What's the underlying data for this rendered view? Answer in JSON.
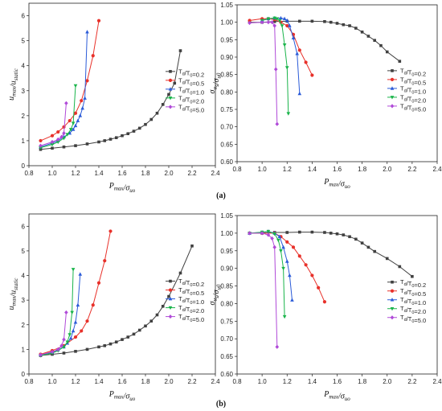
{
  "panel_labels": [
    "(a)",
    "(b)"
  ],
  "chart_data": [
    {
      "type": "line",
      "xlabel": "P_max/σ_uo",
      "ylabel": "u_max/u_static",
      "xlim": [
        0.8,
        2.4
      ],
      "ylim": [
        0,
        6.5
      ],
      "xticks": [
        "0.8",
        "1.0",
        "1.2",
        "1.4",
        "1.6",
        "1.8",
        "2.0",
        "2.2",
        "2.4"
      ],
      "yticks": [
        "0",
        "1",
        "2",
        "3",
        "4",
        "5",
        "6"
      ],
      "legend": "right",
      "series": [
        {
          "name": "T_d/T_0=0.2",
          "color": "#404040",
          "marker": "square",
          "x": [
            0.9,
            1.0,
            1.1,
            1.2,
            1.3,
            1.4,
            1.45,
            1.5,
            1.55,
            1.6,
            1.65,
            1.7,
            1.75,
            1.8,
            1.85,
            1.9,
            1.95,
            2.0,
            2.05,
            2.1
          ],
          "y": [
            0.65,
            0.7,
            0.75,
            0.8,
            0.87,
            0.95,
            1.0,
            1.06,
            1.12,
            1.2,
            1.28,
            1.38,
            1.5,
            1.65,
            1.85,
            2.1,
            2.45,
            2.85,
            3.3,
            4.6
          ]
        },
        {
          "name": "T_d/T_0=0.5",
          "color": "#e8312a",
          "marker": "circle",
          "x": [
            0.9,
            1.0,
            1.05,
            1.1,
            1.15,
            1.2,
            1.25,
            1.3,
            1.35,
            1.4
          ],
          "y": [
            1.0,
            1.2,
            1.35,
            1.55,
            1.8,
            2.1,
            2.6,
            3.4,
            4.4,
            5.8
          ]
        },
        {
          "name": "T_d/T_0=1.0",
          "color": "#2b5bd8",
          "marker": "triangle-up",
          "x": [
            0.9,
            1.0,
            1.05,
            1.1,
            1.15,
            1.18,
            1.2,
            1.22,
            1.24,
            1.26,
            1.28,
            1.3
          ],
          "y": [
            0.75,
            0.9,
            1.0,
            1.15,
            1.3,
            1.45,
            1.6,
            1.8,
            2.0,
            2.3,
            2.7,
            5.35
          ]
        },
        {
          "name": "T_d/T_0=2.0",
          "color": "#19b44a",
          "marker": "triangle-down",
          "x": [
            0.9,
            1.0,
            1.05,
            1.1,
            1.13,
            1.16,
            1.18,
            1.2
          ],
          "y": [
            0.72,
            0.85,
            0.95,
            1.1,
            1.25,
            1.45,
            1.7,
            3.2
          ]
        },
        {
          "name": "T_d/T_0=5.0",
          "color": "#b04ad8",
          "marker": "diamond",
          "x": [
            0.9,
            1.0,
            1.05,
            1.08,
            1.1,
            1.12
          ],
          "y": [
            0.8,
            0.95,
            1.05,
            1.15,
            1.3,
            2.5
          ]
        }
      ]
    },
    {
      "type": "line",
      "xlabel": "P_max/σ_uo",
      "ylabel": "σ_u_s/σ_u0",
      "xlim": [
        0.8,
        2.4
      ],
      "ylim": [
        0.6,
        1.05
      ],
      "xticks": [
        "0.8",
        "1.0",
        "1.2",
        "1.4",
        "1.6",
        "1.8",
        "2.0",
        "2.2",
        "2.4"
      ],
      "yticks": [
        "0.60",
        "0.65",
        "0.70",
        "0.75",
        "0.80",
        "0.85",
        "0.90",
        "0.95",
        "1.00",
        "1.05"
      ],
      "legend": "right",
      "series": [
        {
          "name": "T_d/T_0=0.2",
          "color": "#404040",
          "marker": "square",
          "x": [
            0.9,
            1.0,
            1.1,
            1.2,
            1.3,
            1.4,
            1.5,
            1.55,
            1.6,
            1.65,
            1.7,
            1.75,
            1.8,
            1.85,
            1.9,
            1.95,
            2.0,
            2.1
          ],
          "y": [
            1.0,
            1.0,
            1.002,
            1.003,
            1.003,
            1.003,
            1.002,
            1.0,
            0.997,
            0.993,
            0.99,
            0.983,
            0.972,
            0.96,
            0.948,
            0.933,
            0.915,
            0.888
          ]
        },
        {
          "name": "T_d/T_0=0.5",
          "color": "#e8312a",
          "marker": "circle",
          "x": [
            0.9,
            1.0,
            1.05,
            1.1,
            1.15,
            1.2,
            1.25,
            1.3,
            1.35,
            1.4
          ],
          "y": [
            1.005,
            1.01,
            1.01,
            1.008,
            1.0,
            0.99,
            0.965,
            0.92,
            0.885,
            0.848
          ]
        },
        {
          "name": "T_d/T_0=1.0",
          "color": "#2b5bd8",
          "marker": "triangle-up",
          "x": [
            1.0,
            1.05,
            1.1,
            1.15,
            1.18,
            1.2,
            1.22,
            1.25,
            1.28,
            1.3
          ],
          "y": [
            1.005,
            1.01,
            1.012,
            1.012,
            1.01,
            1.005,
            0.99,
            0.955,
            0.91,
            0.795
          ]
        },
        {
          "name": "T_d/T_0=2.0",
          "color": "#19b44a",
          "marker": "triangle-down",
          "x": [
            1.0,
            1.05,
            1.1,
            1.12,
            1.14,
            1.16,
            1.18,
            1.2,
            1.21
          ],
          "y": [
            1.005,
            1.01,
            1.012,
            1.01,
            1.005,
            0.99,
            0.935,
            0.87,
            0.738
          ]
        },
        {
          "name": "T_d/T_0=5.0",
          "color": "#b04ad8",
          "marker": "diamond",
          "x": [
            0.9,
            1.0,
            1.05,
            1.08,
            1.1,
            1.11,
            1.12
          ],
          "y": [
            0.998,
            1.0,
            1.0,
            1.0,
            0.99,
            0.865,
            0.708
          ]
        }
      ]
    },
    {
      "type": "line",
      "xlabel": "P_max/σ_uo",
      "ylabel": "u_max/u_static",
      "xlim": [
        0.8,
        2.4
      ],
      "ylim": [
        0,
        6.5
      ],
      "xticks": [
        "0.8",
        "1.0",
        "1.2",
        "1.4",
        "1.6",
        "1.8",
        "2.0",
        "2.2",
        "2.4"
      ],
      "yticks": [
        "0",
        "1",
        "2",
        "3",
        "4",
        "5",
        "6"
      ],
      "legend": "right",
      "series": [
        {
          "name": "T_d/T_0=0.2",
          "color": "#404040",
          "marker": "square",
          "x": [
            0.9,
            1.0,
            1.1,
            1.2,
            1.3,
            1.4,
            1.45,
            1.5,
            1.55,
            1.6,
            1.65,
            1.7,
            1.75,
            1.8,
            1.85,
            1.9,
            1.95,
            2.0,
            2.1,
            2.2
          ],
          "y": [
            0.75,
            0.8,
            0.85,
            0.92,
            1.0,
            1.1,
            1.15,
            1.22,
            1.3,
            1.4,
            1.5,
            1.62,
            1.78,
            1.95,
            2.15,
            2.4,
            2.75,
            3.15,
            4.1,
            5.2
          ]
        },
        {
          "name": "T_d/T_0=0.5",
          "color": "#e8312a",
          "marker": "circle",
          "x": [
            0.9,
            1.0,
            1.1,
            1.2,
            1.25,
            1.3,
            1.35,
            1.4,
            1.45,
            1.5
          ],
          "y": [
            0.8,
            0.95,
            1.15,
            1.5,
            1.75,
            2.15,
            2.8,
            3.7,
            4.6,
            5.8
          ]
        },
        {
          "name": "T_d/T_0=1.0",
          "color": "#2b5bd8",
          "marker": "triangle-up",
          "x": [
            0.9,
            1.0,
            1.05,
            1.1,
            1.13,
            1.16,
            1.18,
            1.2,
            1.22,
            1.24
          ],
          "y": [
            0.78,
            0.88,
            0.98,
            1.1,
            1.25,
            1.45,
            1.75,
            2.1,
            2.8,
            4.05
          ]
        },
        {
          "name": "T_d/T_0=2.0",
          "color": "#19b44a",
          "marker": "triangle-down",
          "x": [
            0.9,
            1.0,
            1.05,
            1.1,
            1.13,
            1.15,
            1.17,
            1.18
          ],
          "y": [
            0.75,
            0.85,
            0.95,
            1.1,
            1.3,
            1.6,
            2.5,
            4.25
          ]
        },
        {
          "name": "T_d/T_0=5.0",
          "color": "#b04ad8",
          "marker": "diamond",
          "x": [
            0.9,
            1.0,
            1.05,
            1.08,
            1.1,
            1.12
          ],
          "y": [
            0.78,
            0.9,
            1.0,
            1.15,
            1.4,
            2.5
          ]
        }
      ]
    },
    {
      "type": "line",
      "xlabel": "P_max/σ_uo",
      "ylabel": "σ_u_s/σ_u0",
      "xlim": [
        0.8,
        2.4
      ],
      "ylim": [
        0.6,
        1.05
      ],
      "xticks": [
        "0.8",
        "1.0",
        "1.2",
        "1.4",
        "1.6",
        "1.8",
        "2.0",
        "2.2",
        "2.4"
      ],
      "yticks": [
        "0.60",
        "0.65",
        "0.70",
        "0.75",
        "0.80",
        "0.85",
        "0.90",
        "0.95",
        "1.00",
        "1.05"
      ],
      "legend": "right",
      "series": [
        {
          "name": "T_d/T_0=0.2",
          "color": "#404040",
          "marker": "square",
          "x": [
            0.9,
            1.0,
            1.1,
            1.2,
            1.3,
            1.4,
            1.5,
            1.55,
            1.6,
            1.65,
            1.7,
            1.75,
            1.8,
            1.85,
            1.9,
            2.0,
            2.1,
            2.2
          ],
          "y": [
            1.0,
            1.0,
            1.002,
            1.002,
            1.003,
            1.003,
            1.002,
            1.0,
            0.998,
            0.995,
            0.99,
            0.983,
            0.972,
            0.96,
            0.948,
            0.928,
            0.905,
            0.877
          ]
        },
        {
          "name": "T_d/T_0=0.5",
          "color": "#e8312a",
          "marker": "circle",
          "x": [
            0.9,
            1.0,
            1.1,
            1.15,
            1.2,
            1.25,
            1.3,
            1.35,
            1.4,
            1.45,
            1.5
          ],
          "y": [
            1.0,
            1.0,
            1.0,
            0.99,
            0.975,
            0.96,
            0.935,
            0.91,
            0.88,
            0.845,
            0.805
          ]
        },
        {
          "name": "T_d/T_0=1.0",
          "color": "#2b5bd8",
          "marker": "triangle-up",
          "x": [
            0.9,
            1.0,
            1.05,
            1.1,
            1.14,
            1.17,
            1.2,
            1.22,
            1.24
          ],
          "y": [
            1.0,
            1.002,
            1.005,
            1.0,
            0.99,
            0.96,
            0.92,
            0.88,
            0.81
          ]
        },
        {
          "name": "T_d/T_0=2.0",
          "color": "#19b44a",
          "marker": "triangle-down",
          "x": [
            0.9,
            1.0,
            1.05,
            1.1,
            1.13,
            1.15,
            1.17,
            1.18
          ],
          "y": [
            1.0,
            1.003,
            1.005,
            0.998,
            0.98,
            0.95,
            0.9,
            0.763
          ]
        },
        {
          "name": "T_d/T_0=5.0",
          "color": "#b04ad8",
          "marker": "diamond",
          "x": [
            0.9,
            1.0,
            1.05,
            1.08,
            1.1,
            1.12
          ],
          "y": [
            1.0,
            1.0,
            0.995,
            0.985,
            0.96,
            0.677
          ]
        }
      ]
    }
  ]
}
